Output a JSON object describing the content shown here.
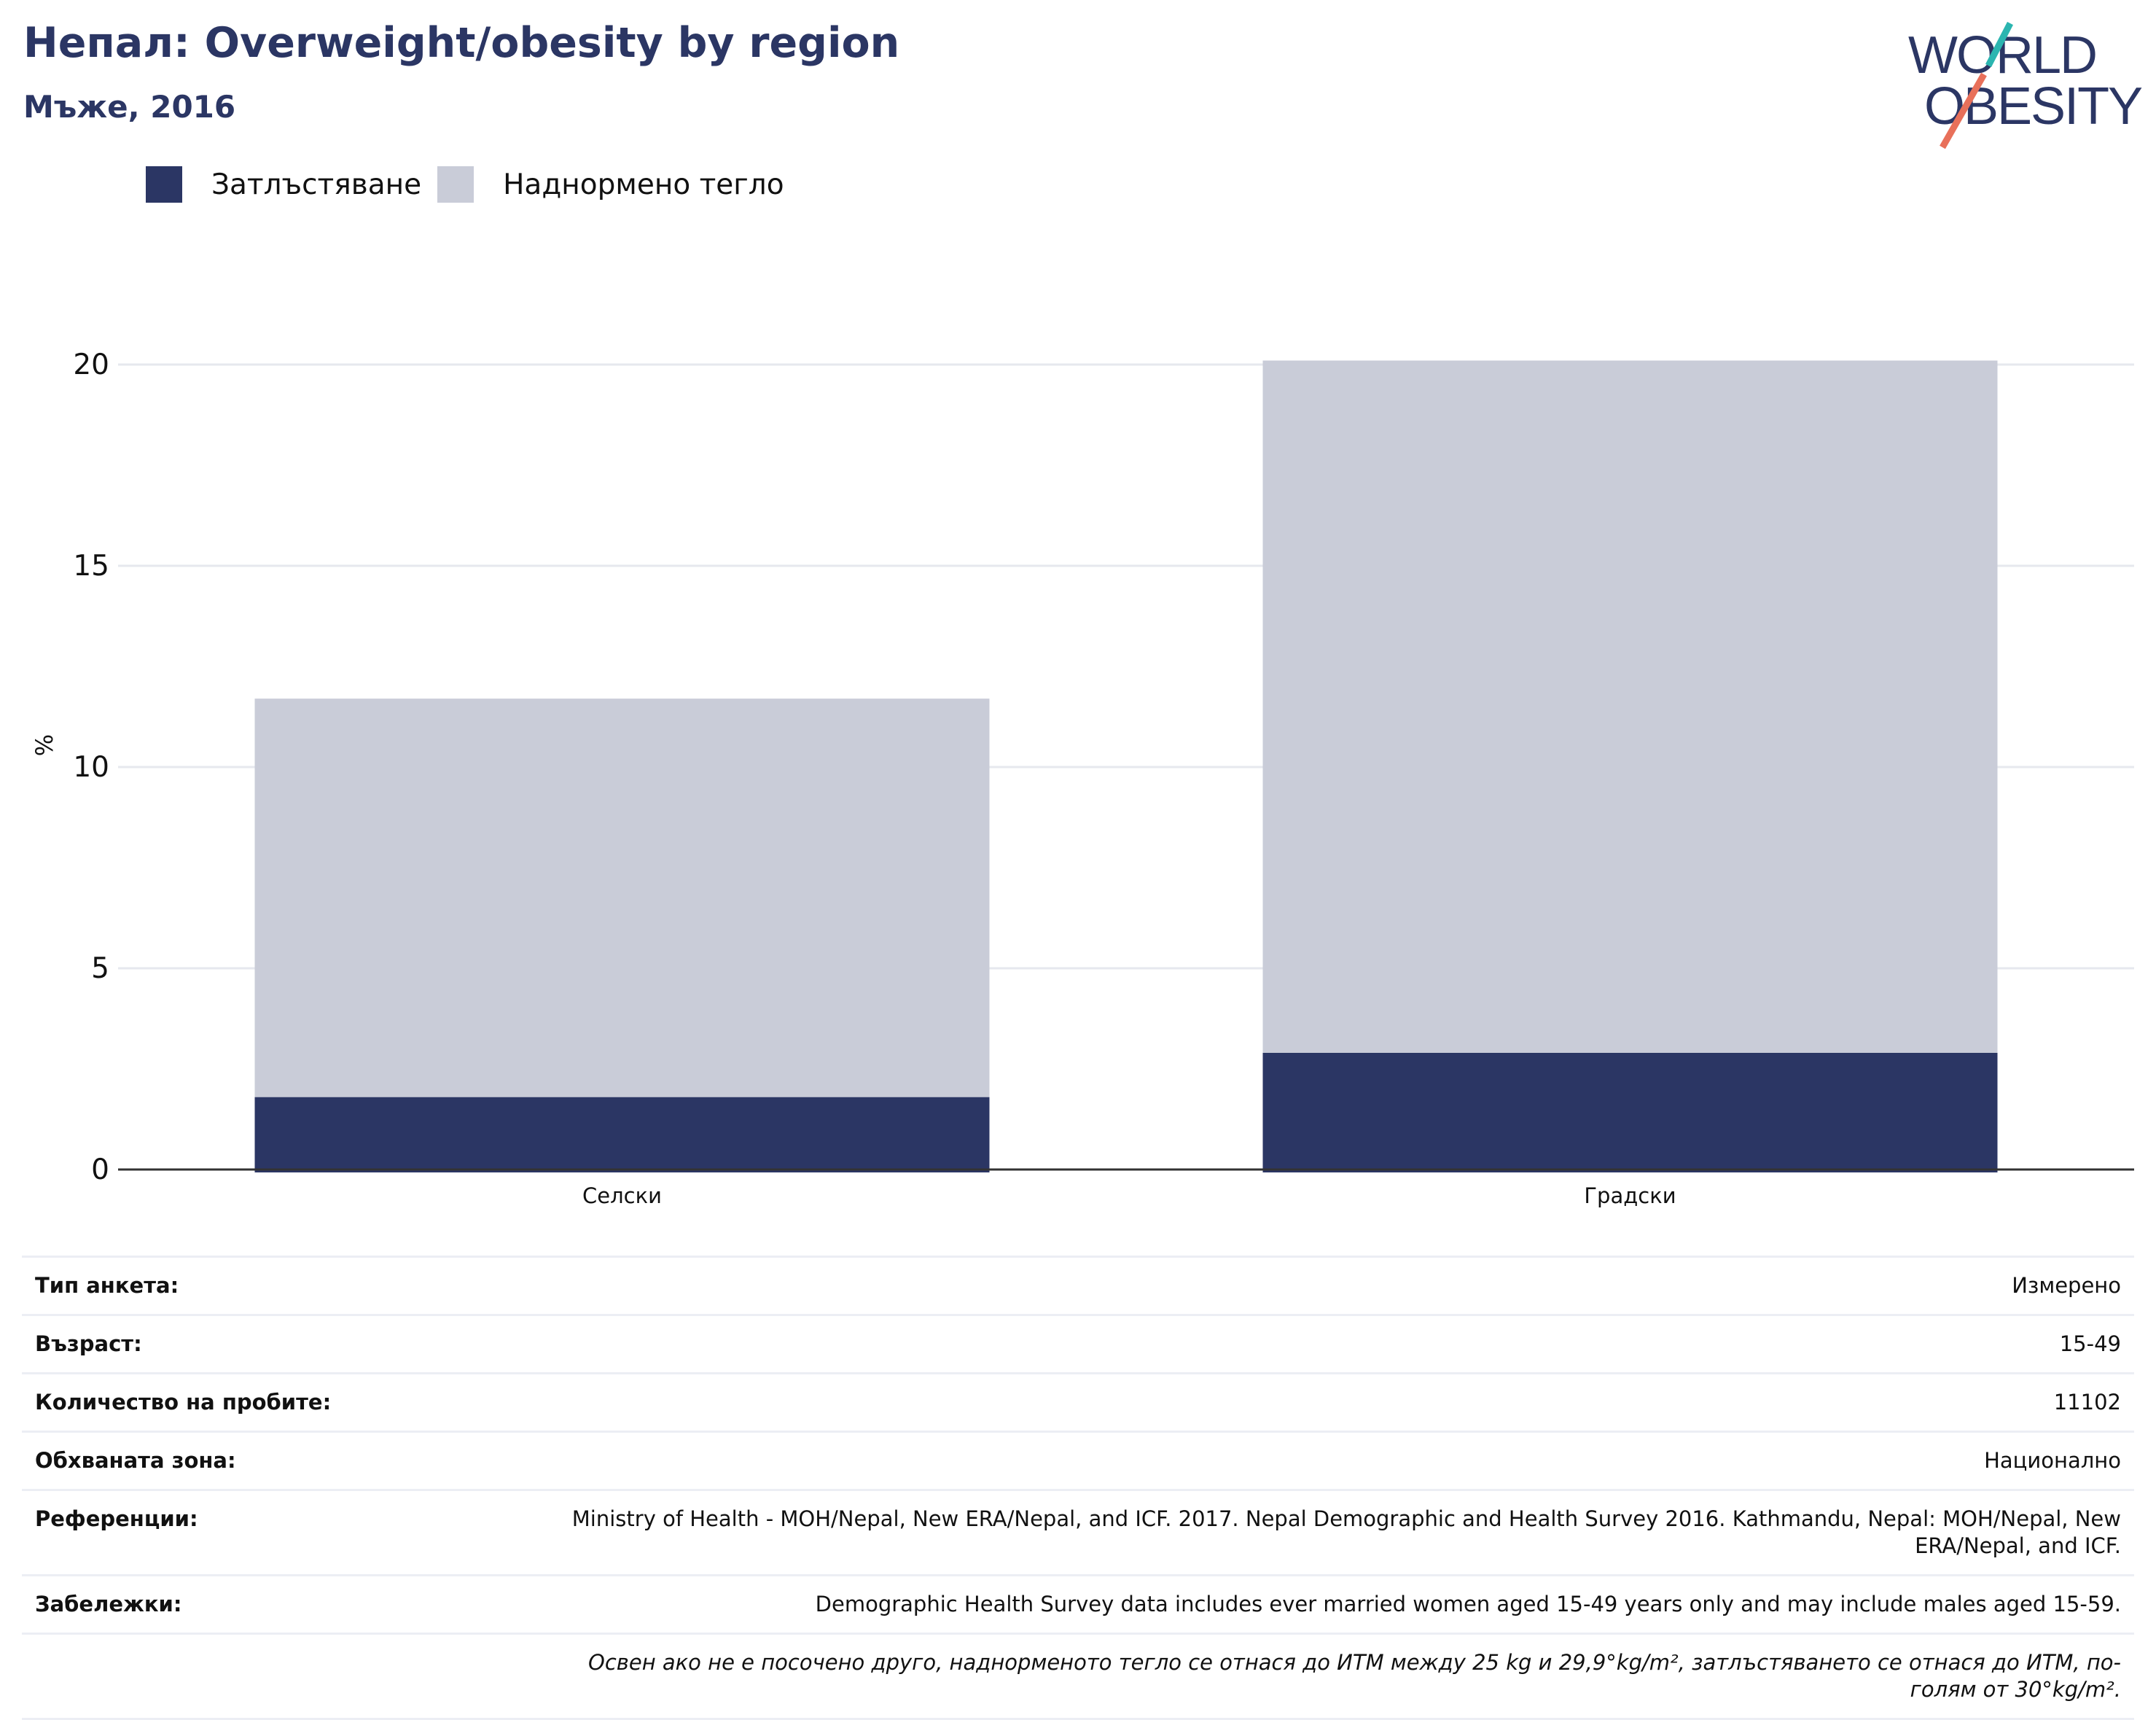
{
  "header": {
    "title": "Непал: Overweight/obesity by region",
    "subtitle": "Мъже, 2016"
  },
  "logo": {
    "line1": "WORLD",
    "line2": "OBESITY"
  },
  "colors": {
    "obesity": "#2b3664",
    "overweight": "#c9ccd8",
    "title": "#2b3664"
  },
  "chart_data": {
    "type": "bar",
    "stacked": true,
    "categories": [
      "Селски",
      "Градски"
    ],
    "series": [
      {
        "name": "Затлъстяване",
        "values": [
          1.8,
          2.9
        ]
      },
      {
        "name": "Наднормено тегло",
        "values": [
          9.9,
          17.2
        ]
      }
    ],
    "ylabel": "%",
    "ylim": [
      0,
      20
    ],
    "yticks": [
      0,
      5,
      10,
      15,
      20
    ],
    "grid": true,
    "legend": "top-left"
  },
  "info": {
    "rows": [
      {
        "label": "Тип анкета:",
        "value": "Измерено"
      },
      {
        "label": "Възраст:",
        "value": "15-49"
      },
      {
        "label": "Количество на пробите:",
        "value": "11102"
      },
      {
        "label": "Обхваната зона:",
        "value": "Национално"
      },
      {
        "label": "Референции:",
        "value": "Ministry of Health - MOH/Nepal, New ERA/Nepal, and ICF. 2017. Nepal Demographic and Health Survey 2016. Kathmandu, Nepal: MOH/Nepal, New ERA/Nepal, and ICF."
      },
      {
        "label": "Забележки:",
        "value": "Demographic Health Survey data includes ever married women aged 15-49 years only and may include males aged 15-59."
      }
    ],
    "footnote": "Освен ако не е посочено друго, наднорменото тегло се отнася до ИТМ между 25 kg и 29,9°kg/m², затлъстяването се отнася до ИТМ, по-голям от 30°kg/m²."
  }
}
